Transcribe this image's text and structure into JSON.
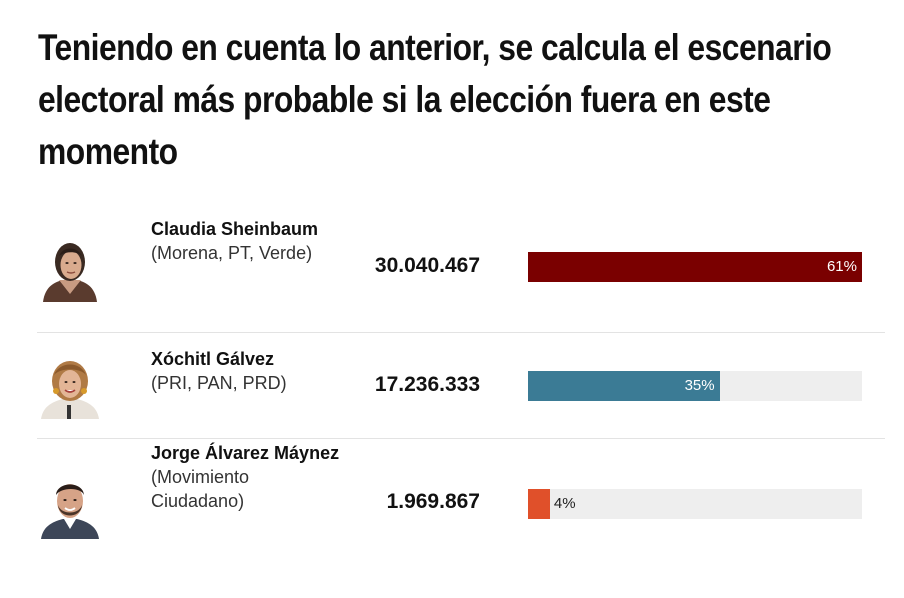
{
  "title": "Teniendo en cuenta lo anterior, se calcula el escenario electoral más probable si la elección fuera en este momento",
  "chart_data": {
    "type": "bar",
    "categories": [
      "Claudia Sheinbaum",
      "Xóchitl Gálvez",
      "Jorge Álvarez Máynez"
    ],
    "values": [
      30040467,
      17236333,
      1969867
    ],
    "percent": [
      61,
      35,
      4
    ],
    "xlim": [
      0,
      100
    ],
    "rows": [
      {
        "name": "Claudia Sheinbaum",
        "party": "(Morena, PT, Verde)",
        "votes": "30.040.467",
        "pct_label": "61%",
        "pct": 61,
        "color": "#7a0000",
        "avatar_icon": "claudia-sheinbaum-avatar"
      },
      {
        "name": "Xóchitl Gálvez",
        "party": "(PRI, PAN, PRD)",
        "votes": "17.236.333",
        "pct_label": "35%",
        "pct": 35,
        "color": "#3b7b95",
        "avatar_icon": "xochitl-galvez-avatar"
      },
      {
        "name": "Jorge Álvarez Máynez",
        "party": "(Movimiento Ciudadano)",
        "votes": "1.969.867",
        "pct_label": "4%",
        "pct": 4,
        "color": "#e0502a",
        "avatar_icon": "jorge-alvarez-maynez-avatar"
      }
    ]
  },
  "colors": {
    "track": "#eeeeee",
    "divider": "#e3e3e3"
  }
}
